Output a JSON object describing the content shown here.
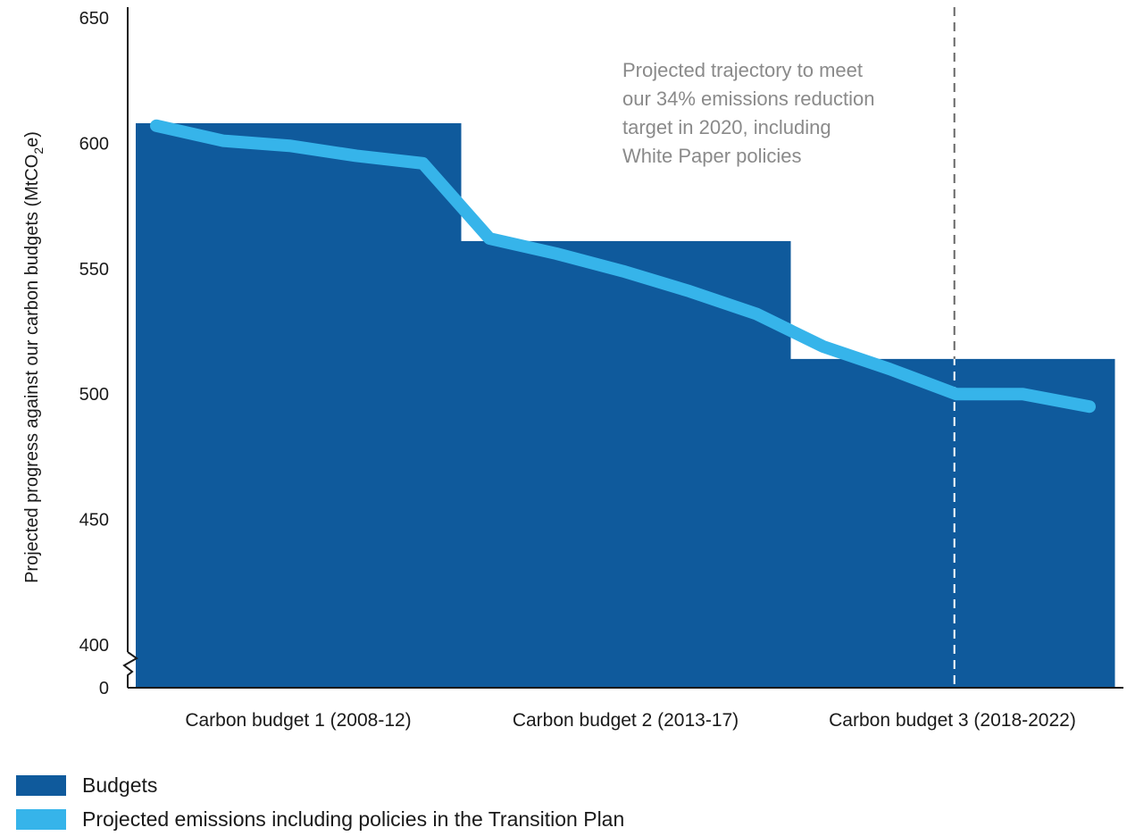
{
  "chart_data": {
    "type": "bar",
    "ylabel": "Projected progress against our carbon budgets (MtCO2e)",
    "ylabel_main": "Projected progress against our carbon budgets (MtCO",
    "ylabel_sub": "2",
    "ylabel_tail": "e)",
    "yticks": [
      "650",
      "600",
      "550",
      "500",
      "450",
      "400"
    ],
    "y_zero_label": "0",
    "ylim": [
      400,
      650
    ],
    "y_axis_break": true,
    "categories": [
      "Carbon budget 1 (2008-12)",
      "Carbon budget 2 (2013-17)",
      "Carbon budget 3 (2018-2022)"
    ],
    "series": [
      {
        "name": "Budgets",
        "type": "bar",
        "color": "#0f5a9c",
        "values": [
          608,
          561,
          514
        ]
      },
      {
        "name": "Projected emissions including policies in the Transition Plan",
        "type": "line",
        "color": "#36b4ea",
        "x": [
          2008,
          2009,
          2010,
          2011,
          2012,
          2013,
          2014,
          2015,
          2016,
          2017,
          2018,
          2019,
          2020,
          2021,
          2022
        ],
        "values": [
          607,
          601,
          599,
          595,
          592,
          562,
          556,
          549,
          541,
          532,
          519,
          510,
          500,
          500,
          495
        ]
      }
    ],
    "reference_line": {
      "year": 2020,
      "style": "dashed"
    },
    "annotation": [
      "Projected trajectory to meet",
      "our 34% emissions reduction",
      "target in 2020, including",
      "White Paper policies"
    ]
  },
  "legend": {
    "items": [
      {
        "label": "Budgets",
        "color": "#0f5a9c"
      },
      {
        "label": "Projected emissions including policies in the Transition Plan",
        "color": "#36b4ea"
      }
    ]
  }
}
